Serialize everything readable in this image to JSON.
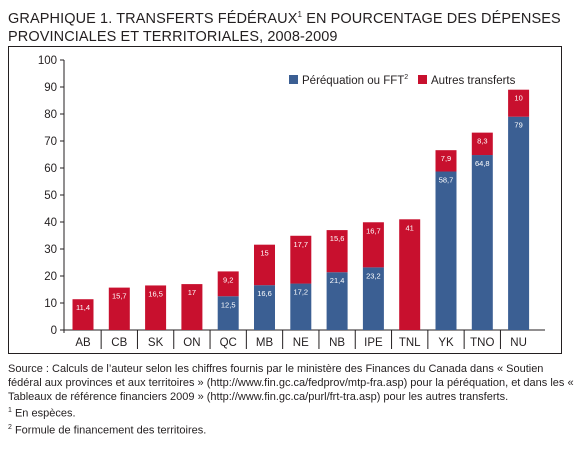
{
  "title": {
    "prefix": "GRAPHIQUE 1. TRANSFERTS FÉDÉRAUX",
    "sup": "1",
    "suffix": " EN POURCENTAGE DES DÉPENSES PROVINCIALES ET TERRITORIALES, 2008-2009"
  },
  "colors": {
    "equalization": "#3b5f93",
    "other": "#c8102e",
    "axis": "#231f20",
    "label_on_bar": "#ffffff"
  },
  "chart_data": {
    "type": "bar",
    "stacked": true,
    "categories": [
      "AB",
      "CB",
      "SK",
      "ON",
      "QC",
      "MB",
      "NE",
      "NB",
      "IPE",
      "TNL",
      "YK",
      "TNO",
      "NU"
    ],
    "series": [
      {
        "name": "Péréquation ou FFT",
        "name_sup": "2",
        "color": "#3b5f93",
        "values": [
          0,
          0,
          0,
          0,
          12.5,
          16.6,
          17.2,
          21.4,
          23.2,
          0,
          58.7,
          64.8,
          79
        ],
        "labels": [
          "",
          "",
          "",
          "",
          "12,5",
          "16,6",
          "17,2",
          "21,4",
          "23,2",
          "",
          "58,7",
          "64,8",
          "79"
        ]
      },
      {
        "name": "Autres transferts",
        "color": "#c8102e",
        "values": [
          11.4,
          15.7,
          16.5,
          17,
          9.2,
          15,
          17.7,
          15.6,
          16.7,
          41,
          7.9,
          8.3,
          10
        ],
        "labels": [
          "11,4",
          "15,7",
          "16,5",
          "17",
          "9,2",
          "15",
          "17,7",
          "15,6",
          "16,7",
          "41",
          "7,9",
          "8,3",
          "10"
        ]
      }
    ],
    "ylim": [
      0,
      100
    ],
    "yticks": [
      0,
      10,
      20,
      30,
      40,
      50,
      60,
      70,
      80,
      90,
      100
    ],
    "grid": false,
    "legend_position": "top-right"
  },
  "notes": {
    "source": "Source : Calculs de l’auteur selon les chiffres fournis par le ministère des Finances du Canada dans « Soutien fédéral aux provinces et aux territoires » (http://www.fin.gc.ca/fedprov/mtp-fra.asp) pour la péréquation, et dans les « Tableaux de référence financiers 2009 » (http://www.fin.gc.ca/purl/frt-tra.asp) pour les autres transferts.",
    "footnote1_num": "1",
    "footnote1": " En espèces.",
    "footnote2_num": "2",
    "footnote2": " Formule de financement des territoires."
  }
}
